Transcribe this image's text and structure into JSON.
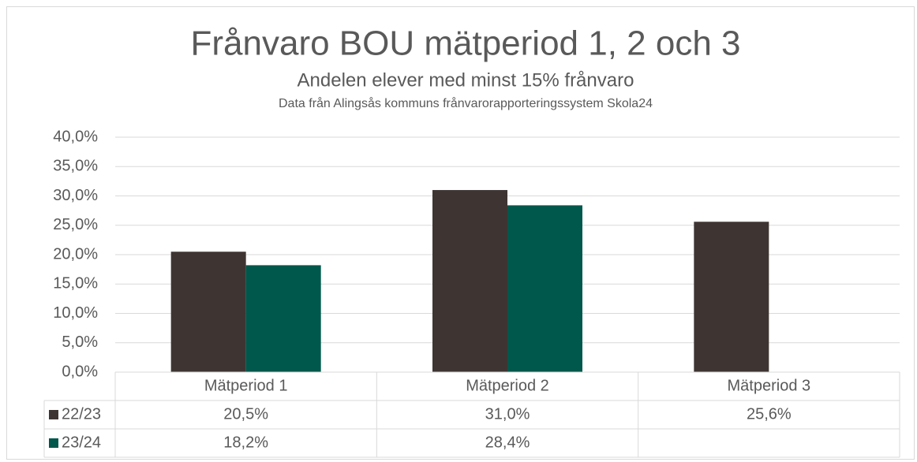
{
  "chart_data": {
    "type": "bar",
    "title": "Frånvaro BOU mätperiod 1, 2 och 3",
    "subtitle": "Andelen elever med minst 15% frånvaro",
    "source": "Data från Alingsås kommuns frånvarorapporteringssystem Skola24",
    "categories": [
      "Mätperiod 1",
      "Mätperiod 2",
      "Mätperiod 3"
    ],
    "series": [
      {
        "name": "22/23",
        "color": "#3e3532",
        "values": [
          20.5,
          31.0,
          25.6
        ],
        "value_labels": [
          "20,5%",
          "31,0%",
          "25,6%"
        ]
      },
      {
        "name": "23/24",
        "color": "#00574b",
        "values": [
          18.2,
          28.4,
          null
        ],
        "value_labels": [
          "18,2%",
          "28,4%",
          null
        ]
      }
    ],
    "ylim": [
      0,
      40
    ],
    "yticks": [
      {
        "value": 0,
        "label": "0,0%"
      },
      {
        "value": 5,
        "label": "5,0%"
      },
      {
        "value": 10,
        "label": "10,0%"
      },
      {
        "value": 15,
        "label": "15,0%"
      },
      {
        "value": 20,
        "label": "20,0%"
      },
      {
        "value": 25,
        "label": "25,0%"
      },
      {
        "value": 30,
        "label": "30,0%"
      },
      {
        "value": 35,
        "label": "35,0%"
      },
      {
        "value": 40,
        "label": "40,0%"
      }
    ],
    "grid": true
  }
}
